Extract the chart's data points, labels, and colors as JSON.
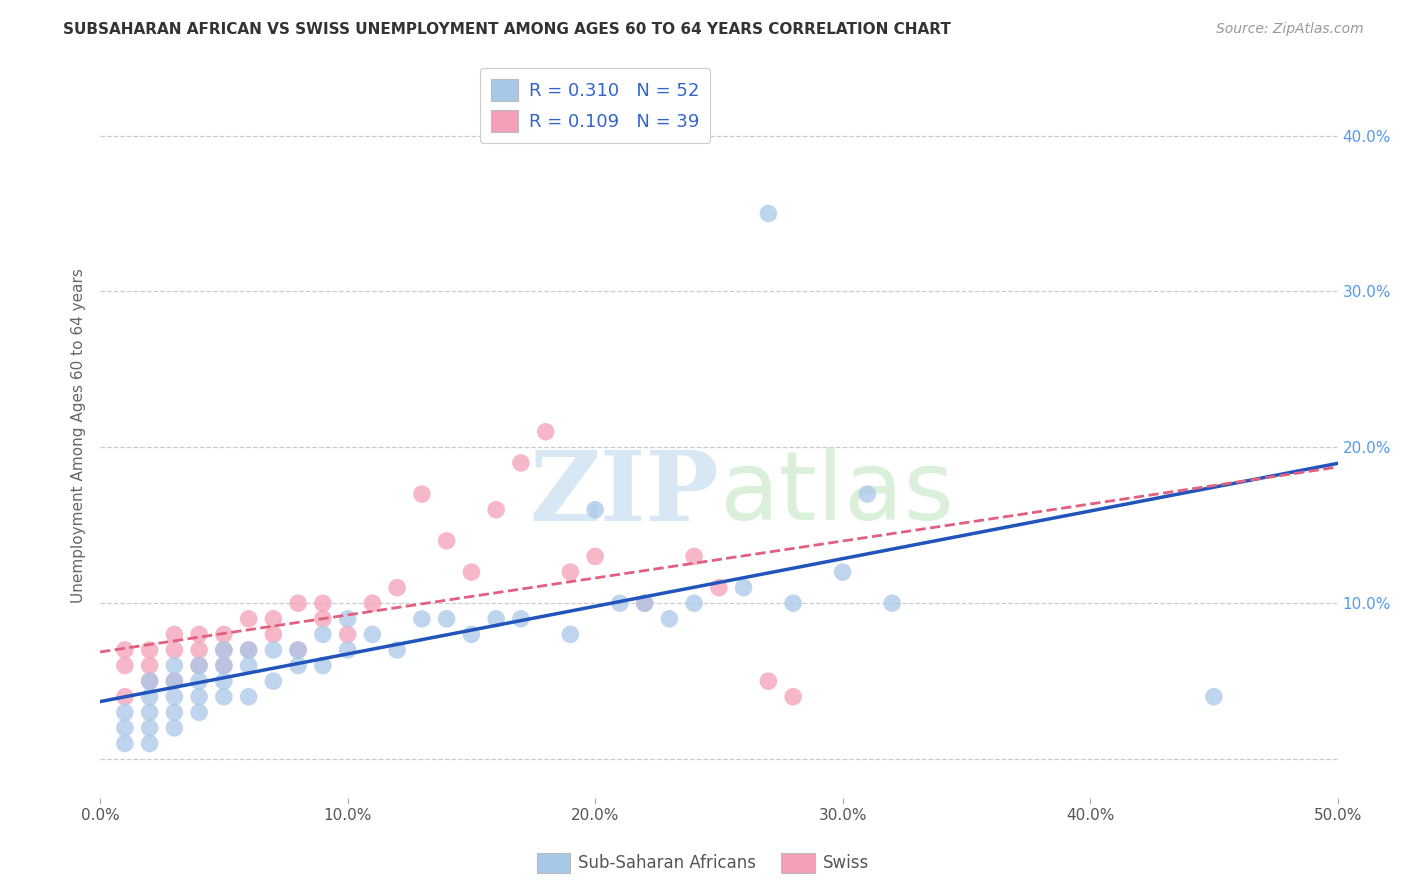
{
  "title": "SUBSAHARAN AFRICAN VS SWISS UNEMPLOYMENT AMONG AGES 60 TO 64 YEARS CORRELATION CHART",
  "source": "Source: ZipAtlas.com",
  "ylabel": "Unemployment Among Ages 60 to 64 years",
  "xlim": [
    0.0,
    0.5
  ],
  "ylim": [
    -0.025,
    0.44
  ],
  "blue_color": "#a8c8e8",
  "pink_color": "#f4a0b8",
  "blue_line_color": "#2255bb",
  "pink_line_color": "#e06080",
  "R_blue": 0.31,
  "N_blue": 52,
  "R_pink": 0.109,
  "N_pink": 39,
  "legend_label_blue": "Sub-Saharan Africans",
  "legend_label_pink": "Swiss",
  "grid_color": "#cccccc",
  "background_color": "#ffffff",
  "ytick_color": "#5599ee",
  "blue_scatter_x": [
    0.01,
    0.01,
    0.01,
    0.02,
    0.02,
    0.02,
    0.02,
    0.02,
    0.03,
    0.03,
    0.03,
    0.03,
    0.03,
    0.04,
    0.04,
    0.04,
    0.04,
    0.05,
    0.05,
    0.05,
    0.05,
    0.06,
    0.06,
    0.06,
    0.07,
    0.07,
    0.08,
    0.08,
    0.09,
    0.09,
    0.1,
    0.1,
    0.11,
    0.12,
    0.13,
    0.14,
    0.15,
    0.16,
    0.17,
    0.19,
    0.2,
    0.21,
    0.22,
    0.23,
    0.24,
    0.26,
    0.28,
    0.3,
    0.31,
    0.32,
    0.45,
    0.27
  ],
  "blue_scatter_y": [
    0.01,
    0.02,
    0.03,
    0.01,
    0.02,
    0.03,
    0.04,
    0.05,
    0.02,
    0.03,
    0.04,
    0.05,
    0.06,
    0.03,
    0.04,
    0.05,
    0.06,
    0.04,
    0.05,
    0.06,
    0.07,
    0.04,
    0.06,
    0.07,
    0.05,
    0.07,
    0.06,
    0.07,
    0.06,
    0.08,
    0.07,
    0.09,
    0.08,
    0.07,
    0.09,
    0.09,
    0.08,
    0.09,
    0.09,
    0.08,
    0.16,
    0.1,
    0.1,
    0.09,
    0.1,
    0.11,
    0.1,
    0.12,
    0.17,
    0.1,
    0.04,
    0.35
  ],
  "pink_scatter_x": [
    0.01,
    0.01,
    0.01,
    0.02,
    0.02,
    0.02,
    0.03,
    0.03,
    0.03,
    0.04,
    0.04,
    0.04,
    0.05,
    0.05,
    0.05,
    0.06,
    0.06,
    0.07,
    0.07,
    0.08,
    0.08,
    0.09,
    0.09,
    0.1,
    0.11,
    0.12,
    0.13,
    0.14,
    0.15,
    0.16,
    0.17,
    0.18,
    0.19,
    0.2,
    0.22,
    0.24,
    0.25,
    0.27,
    0.28
  ],
  "pink_scatter_y": [
    0.04,
    0.06,
    0.07,
    0.05,
    0.06,
    0.07,
    0.05,
    0.07,
    0.08,
    0.06,
    0.07,
    0.08,
    0.06,
    0.07,
    0.08,
    0.07,
    0.09,
    0.08,
    0.09,
    0.07,
    0.1,
    0.09,
    0.1,
    0.08,
    0.1,
    0.11,
    0.17,
    0.14,
    0.12,
    0.16,
    0.19,
    0.21,
    0.12,
    0.13,
    0.1,
    0.13,
    0.11,
    0.05,
    0.04
  ]
}
